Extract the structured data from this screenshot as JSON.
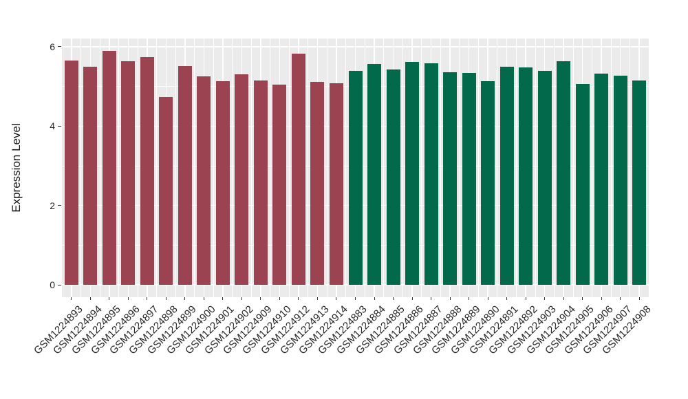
{
  "chart_data": {
    "type": "bar",
    "title": "",
    "xlabel": "",
    "ylabel": "Expression Level",
    "yticks": [
      0,
      2,
      4,
      6
    ],
    "ylim": [
      0,
      6.2
    ],
    "grid": true,
    "legend_position": "none",
    "panel_bg": "#EBEBEB",
    "grid_color": "#FFFFFF",
    "categories": [
      "GSM1224893",
      "GSM1224894",
      "GSM1224895",
      "GSM1224896",
      "GSM1224897",
      "GSM1224898",
      "GSM1224899",
      "GSM1224900",
      "GSM1224901",
      "GSM1224902",
      "GSM1224909",
      "GSM1224910",
      "GSM1224912",
      "GSM1224913",
      "GSM1224914",
      "GSM1224883",
      "GSM1224884",
      "GSM1224885",
      "GSM1224886",
      "GSM1224887",
      "GSM1224888",
      "GSM1224889",
      "GSM1224890",
      "GSM1224891",
      "GSM1224892",
      "GSM1224903",
      "GSM1224904",
      "GSM1224905",
      "GSM1224906",
      "GSM1224907",
      "GSM1224908"
    ],
    "values": [
      5.65,
      5.49,
      5.9,
      5.63,
      5.74,
      4.74,
      5.52,
      5.25,
      5.14,
      5.3,
      5.15,
      5.04,
      5.82,
      5.11,
      5.08,
      5.4,
      5.56,
      5.43,
      5.61,
      5.58,
      5.36,
      5.34,
      5.14,
      5.5,
      5.48,
      5.39,
      5.64,
      5.07,
      5.32,
      5.27,
      5.15
    ],
    "groups": [
      {
        "color": "#9B4350",
        "count": 15
      },
      {
        "color": "#02694B",
        "count": 16
      }
    ]
  }
}
